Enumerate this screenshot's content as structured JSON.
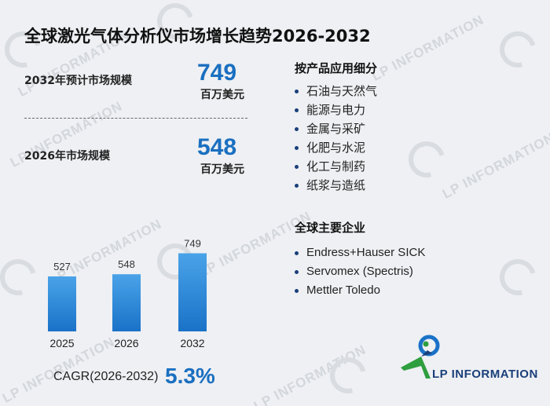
{
  "title": "全球激光气体分析仪市场增长趋势2026-2032",
  "stats": {
    "forecast_label": "2032年预计市场规模",
    "forecast_value": "749",
    "forecast_unit": "百万美元",
    "current_label": "2026年市场规模",
    "current_value": "548",
    "current_unit": "百万美元"
  },
  "chart_data": {
    "type": "bar",
    "categories": [
      "2025",
      "2026",
      "2032"
    ],
    "values": [
      527,
      548,
      749
    ],
    "title": "",
    "xlabel": "",
    "ylabel": "",
    "ylim": [
      0,
      800
    ],
    "grid": false,
    "colors": {
      "bar_top": "#4aa3e8",
      "bar_bottom": "#1a72c8"
    }
  },
  "cagr": {
    "label": "CAGR(2026-2032)",
    "value": "5.3%"
  },
  "segments": {
    "heading": "按产品应用细分",
    "items": [
      "石油与天然气",
      "能源与电力",
      "金属与采矿",
      "化肥与水泥",
      "化工与制药",
      "纸浆与造纸"
    ]
  },
  "companies": {
    "heading": "全球主要企业",
    "items": [
      "Endress+Hauser SICK",
      "Servomex (Spectris)",
      "Mettler Toledo"
    ]
  },
  "brand": {
    "name": "LP INFORMATION",
    "logo_icon": "lp-information-logo-icon"
  },
  "watermark": {
    "text": "LP INFORMATION",
    "icon": "lp-watermark-icon"
  },
  "colors": {
    "accent": "#1a6fc0",
    "background": "#eef0f3",
    "brand_navy": "#1a3f7a",
    "brand_green": "#2e9e3e"
  }
}
